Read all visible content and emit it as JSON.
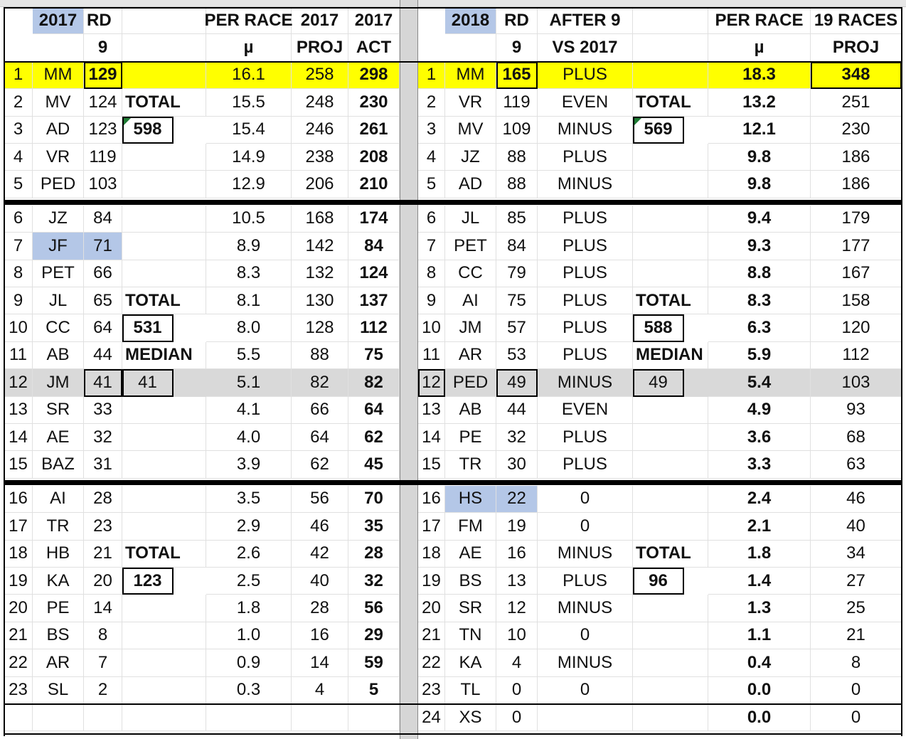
{
  "left": {
    "headers": {
      "row1": [
        "2017",
        "RD",
        "",
        "PER RACE",
        "2017",
        "2017"
      ],
      "row2": [
        "",
        "9",
        "",
        "µ",
        "PROJ",
        "ACT"
      ]
    },
    "rows": [
      [
        "1",
        "MM",
        "129",
        "",
        "16.1",
        "258",
        "298"
      ],
      [
        "2",
        "MV",
        "124",
        "TOTAL",
        "15.5",
        "248",
        "230"
      ],
      [
        "3",
        "AD",
        "123",
        "598",
        "15.4",
        "246",
        "261"
      ],
      [
        "4",
        "VR",
        "119",
        "",
        "14.9",
        "238",
        "208"
      ],
      [
        "5",
        "PED",
        "103",
        "",
        "12.9",
        "206",
        "210"
      ],
      [
        "6",
        "JZ",
        "84",
        "",
        "10.5",
        "168",
        "174"
      ],
      [
        "7",
        "JF",
        "71",
        "",
        "8.9",
        "142",
        "84"
      ],
      [
        "8",
        "PET",
        "66",
        "",
        "8.3",
        "132",
        "124"
      ],
      [
        "9",
        "JL",
        "65",
        "TOTAL",
        "8.1",
        "130",
        "137"
      ],
      [
        "10",
        "CC",
        "64",
        "531",
        "8.0",
        "128",
        "112"
      ],
      [
        "11",
        "AB",
        "44",
        "MEDIAN",
        "5.5",
        "88",
        "75"
      ],
      [
        "12",
        "JM",
        "41",
        "41",
        "5.1",
        "82",
        "82"
      ],
      [
        "13",
        "SR",
        "33",
        "",
        "4.1",
        "66",
        "64"
      ],
      [
        "14",
        "AE",
        "32",
        "",
        "4.0",
        "64",
        "62"
      ],
      [
        "15",
        "BAZ",
        "31",
        "",
        "3.9",
        "62",
        "45"
      ],
      [
        "16",
        "AI",
        "28",
        "",
        "3.5",
        "56",
        "70"
      ],
      [
        "17",
        "TR",
        "23",
        "",
        "2.9",
        "46",
        "35"
      ],
      [
        "18",
        "HB",
        "21",
        "TOTAL",
        "2.6",
        "42",
        "28"
      ],
      [
        "19",
        "KA",
        "20",
        "123",
        "2.5",
        "40",
        "32"
      ],
      [
        "20",
        "PE",
        "14",
        "",
        "1.8",
        "28",
        "56"
      ],
      [
        "21",
        "BS",
        "8",
        "",
        "1.0",
        "16",
        "29"
      ],
      [
        "22",
        "AR",
        "7",
        "",
        "0.9",
        "14",
        "59"
      ],
      [
        "23",
        "SL",
        "2",
        "",
        "0.3",
        "4",
        "5"
      ],
      [
        "",
        "",
        "",
        "",
        "",
        "",
        ""
      ]
    ]
  },
  "right": {
    "headers": {
      "row1": [
        "2018",
        "RD",
        "AFTER 9",
        "",
        "PER RACE",
        "19 RACES"
      ],
      "row2": [
        "",
        "9",
        "VS 2017",
        "",
        "µ",
        "PROJ"
      ]
    },
    "rows": [
      [
        "1",
        "MM",
        "165",
        "PLUS",
        "",
        "18.3",
        "348"
      ],
      [
        "2",
        "VR",
        "119",
        "EVEN",
        "TOTAL",
        "13.2",
        "251"
      ],
      [
        "3",
        "MV",
        "109",
        "MINUS",
        "569",
        "12.1",
        "230"
      ],
      [
        "4",
        "JZ",
        "88",
        "PLUS",
        "",
        "9.8",
        "186"
      ],
      [
        "5",
        "AD",
        "88",
        "MINUS",
        "",
        "9.8",
        "186"
      ],
      [
        "6",
        "JL",
        "85",
        "PLUS",
        "",
        "9.4",
        "179"
      ],
      [
        "7",
        "PET",
        "84",
        "PLUS",
        "",
        "9.3",
        "177"
      ],
      [
        "8",
        "CC",
        "79",
        "PLUS",
        "",
        "8.8",
        "167"
      ],
      [
        "9",
        "AI",
        "75",
        "PLUS",
        "TOTAL",
        "8.3",
        "158"
      ],
      [
        "10",
        "JM",
        "57",
        "PLUS",
        "588",
        "6.3",
        "120"
      ],
      [
        "11",
        "AR",
        "53",
        "PLUS",
        "MEDIAN",
        "5.9",
        "112"
      ],
      [
        "12",
        "PED",
        "49",
        "MINUS",
        "49",
        "5.4",
        "103"
      ],
      [
        "13",
        "AB",
        "44",
        "EVEN",
        "",
        "4.9",
        "93"
      ],
      [
        "14",
        "PE",
        "32",
        "PLUS",
        "",
        "3.6",
        "68"
      ],
      [
        "15",
        "TR",
        "30",
        "PLUS",
        "",
        "3.3",
        "63"
      ],
      [
        "16",
        "HS",
        "22",
        "0",
        "",
        "2.4",
        "46"
      ],
      [
        "17",
        "FM",
        "19",
        "0",
        "",
        "2.1",
        "40"
      ],
      [
        "18",
        "AE",
        "16",
        "MINUS",
        "TOTAL",
        "1.8",
        "34"
      ],
      [
        "19",
        "BS",
        "13",
        "PLUS",
        "96",
        "1.4",
        "27"
      ],
      [
        "20",
        "SR",
        "12",
        "MINUS",
        "",
        "1.3",
        "25"
      ],
      [
        "21",
        "TN",
        "10",
        "0",
        "",
        "1.1",
        "21"
      ],
      [
        "22",
        "KA",
        "4",
        "MINUS",
        "",
        "0.4",
        "8"
      ],
      [
        "23",
        "TL",
        "0",
        "0",
        "",
        "0.0",
        "0"
      ],
      [
        "24",
        "XS",
        "0",
        "",
        "",
        "0.0",
        "0"
      ]
    ]
  },
  "colors": {
    "highlight_yellow": "#ffff00",
    "median_gray": "#d9d9d9",
    "selected_blue": "#b4c7e7",
    "comment_green": "#1e7b34"
  }
}
